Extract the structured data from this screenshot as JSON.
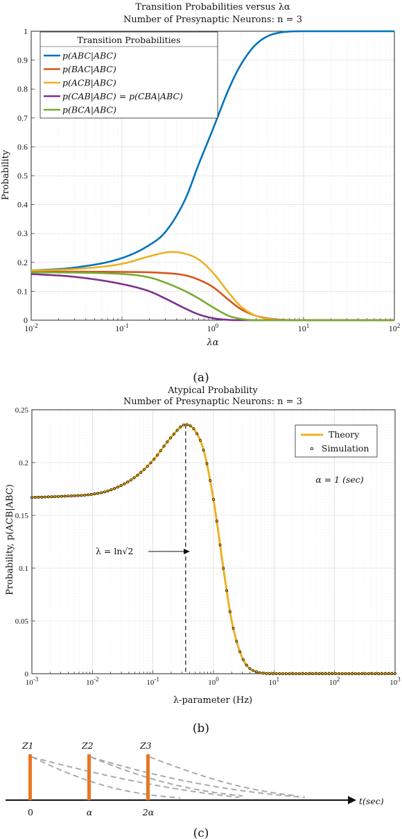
{
  "chart_data": [
    {
      "id": "a",
      "type": "line",
      "title": "Transition Probabilities versus λα",
      "subtitle": "Number of Presynaptic Neurons: n = 3",
      "xlabel": "λα",
      "ylabel": "Probability",
      "x_scale": "log",
      "xlim": [
        0.01,
        100
      ],
      "ylim": [
        0,
        1
      ],
      "x_ticks": [
        "10-2",
        "10-1",
        "100",
        "101",
        "102"
      ],
      "y_ticks": [
        "0",
        "0.1",
        "0.2",
        "0.3",
        "0.4",
        "0.5",
        "0.6",
        "0.7",
        "0.8",
        "0.9",
        "1"
      ],
      "grid": true,
      "legend_title": "Transition Probabilities",
      "legend_position": "top-left",
      "series": [
        {
          "name": "p(ABC|ABC)",
          "color": "#0072BD",
          "x": [
            0.01,
            0.03,
            0.1,
            0.2,
            0.3,
            0.5,
            0.7,
            1.0,
            1.5,
            2.0,
            3.0,
            5.0,
            10,
            100
          ],
          "y": [
            0.172,
            0.182,
            0.215,
            0.26,
            0.305,
            0.42,
            0.54,
            0.66,
            0.8,
            0.88,
            0.955,
            0.993,
            1.0,
            1.0
          ]
        },
        {
          "name": "p(BAC|ABC)",
          "color": "#D95319",
          "x": [
            0.01,
            0.1,
            0.3,
            0.5,
            0.7,
            1.0,
            1.5,
            2.0,
            3.0,
            5.0,
            10,
            100
          ],
          "y": [
            0.168,
            0.167,
            0.163,
            0.155,
            0.14,
            0.115,
            0.07,
            0.04,
            0.015,
            0.003,
            0.0,
            0.0
          ]
        },
        {
          "name": "p(ACB|ABC)",
          "color": "#EDB120",
          "x": [
            0.01,
            0.03,
            0.1,
            0.2,
            0.3,
            0.35,
            0.5,
            0.7,
            1.0,
            1.5,
            2.0,
            3.0,
            5.0,
            10,
            100
          ],
          "y": [
            0.172,
            0.177,
            0.195,
            0.221,
            0.234,
            0.236,
            0.23,
            0.21,
            0.165,
            0.095,
            0.05,
            0.015,
            0.002,
            0.0,
            0.0
          ]
        },
        {
          "name": "p(CAB|ABC) = p(CBA|ABC)",
          "color": "#7E2F8E",
          "x": [
            0.01,
            0.03,
            0.1,
            0.2,
            0.3,
            0.5,
            0.7,
            1.0,
            1.5,
            2.0,
            3.0,
            10,
            100
          ],
          "y": [
            0.16,
            0.15,
            0.125,
            0.1,
            0.075,
            0.04,
            0.02,
            0.007,
            0.001,
            0.0,
            0.0,
            0.0,
            0.0
          ]
        },
        {
          "name": "p(BCA|ABC)",
          "color": "#77AC30",
          "x": [
            0.01,
            0.1,
            0.2,
            0.3,
            0.5,
            0.7,
            1.0,
            1.5,
            2.0,
            3.0,
            5.0,
            10,
            100
          ],
          "y": [
            0.166,
            0.16,
            0.148,
            0.13,
            0.1,
            0.075,
            0.045,
            0.015,
            0.005,
            0.0,
            0.0,
            0.0,
            0.0
          ]
        }
      ]
    },
    {
      "id": "b",
      "type": "line",
      "title": "Atypical Probability",
      "subtitle": "Number of Presynaptic Neurons: n = 3",
      "xlabel": "λ-parameter (Hz)",
      "ylabel": "Probability, p(ACB|ABC)",
      "x_scale": "log",
      "xlim": [
        0.001,
        1000
      ],
      "ylim": [
        0,
        0.25
      ],
      "x_ticks": [
        "10-3",
        "10-2",
        "10-1",
        "100",
        "101",
        "102",
        "103"
      ],
      "y_ticks": [
        "0",
        "0.05",
        "0.1",
        "0.15",
        "0.2",
        "0.25"
      ],
      "grid": true,
      "legend_position": "top-right",
      "annotation_alpha": "α = 1 (sec)",
      "annotation_lambda": "λ = ln√2",
      "vline_x": 0.3466,
      "series": [
        {
          "name": "Theory",
          "color": "#EDB120",
          "x": [
            0.001,
            0.003,
            0.01,
            0.02,
            0.05,
            0.1,
            0.2,
            0.3466,
            0.5,
            0.7,
            1.0,
            1.5,
            2.0,
            3.0,
            5.0,
            10,
            1000
          ],
          "y": [
            0.167,
            0.168,
            0.17,
            0.174,
            0.186,
            0.202,
            0.224,
            0.236,
            0.23,
            0.21,
            0.165,
            0.095,
            0.05,
            0.015,
            0.002,
            0.0,
            0.0
          ]
        },
        {
          "name": "Simulation",
          "color": "#000000",
          "marker": "circle"
        }
      ]
    }
  ],
  "captions": {
    "a": "(a)",
    "b": "(b)",
    "c": "(c)"
  },
  "diagram_c": {
    "spike_labels": [
      "Z1",
      "Z2",
      "Z3"
    ],
    "time_labels": [
      "0",
      "α",
      "2α"
    ],
    "axis_label": "t(sec)",
    "spike_color": "#E87722",
    "decay_color": "#AAAAAA"
  }
}
